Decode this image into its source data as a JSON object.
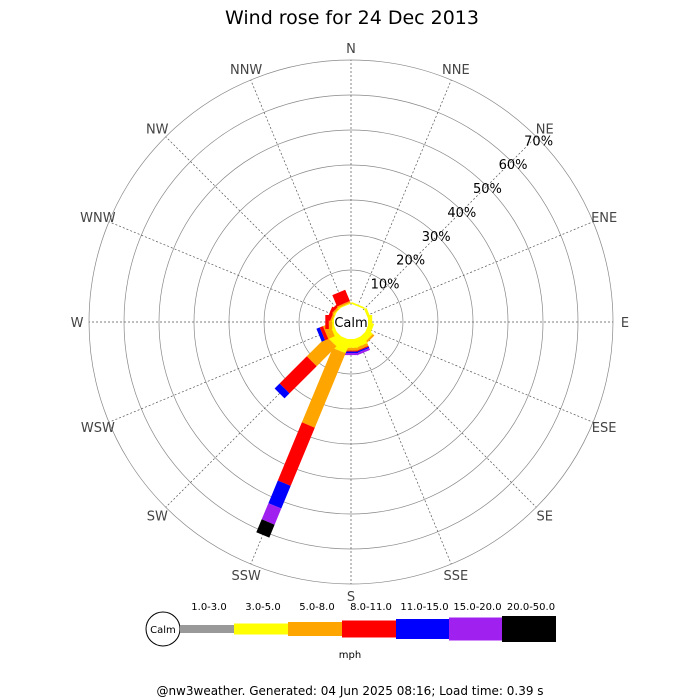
{
  "chart_data": {
    "type": "wind-rose",
    "title": "Wind rose for 24 Dec 2013",
    "directions": [
      "N",
      "NNE",
      "NE",
      "ENE",
      "E",
      "ESE",
      "SE",
      "SSE",
      "S",
      "SSW",
      "SW",
      "WSW",
      "W",
      "WNW",
      "NW",
      "NNW"
    ],
    "radial_ticks": [
      "10%",
      "20%",
      "30%",
      "40%",
      "50%",
      "60%",
      "70%"
    ],
    "radial_max": 70,
    "calm_label": "Calm",
    "unit": "mph",
    "bins": [
      {
        "label": "1.0-3.0",
        "color": "#999999"
      },
      {
        "label": "3.0-5.0",
        "color": "#ffff00"
      },
      {
        "label": "5.0-8.0",
        "color": "#ffa500"
      },
      {
        "label": "8.0-11.0",
        "color": "#ff0000"
      },
      {
        "label": "11.0-15.0",
        "color": "#0000ff"
      },
      {
        "label": "15.0-20.0",
        "color": "#a020f0"
      },
      {
        "label": "20.0-50.0",
        "color": "#000000"
      }
    ],
    "series": [
      {
        "direction": "NNE",
        "values": [
          0,
          0.5,
          0,
          0,
          0,
          0,
          0
        ]
      },
      {
        "direction": "ENE",
        "values": [
          0,
          0.8,
          0,
          0,
          0,
          0,
          0
        ]
      },
      {
        "direction": "E",
        "values": [
          0,
          1.2,
          0,
          0,
          0,
          0,
          0
        ]
      },
      {
        "direction": "ESE",
        "values": [
          0,
          1.5,
          0,
          0,
          0,
          0,
          0
        ]
      },
      {
        "direction": "SE",
        "values": [
          0,
          2.0,
          0.6,
          0,
          0,
          0,
          0
        ]
      },
      {
        "direction": "SSE",
        "values": [
          0,
          2.5,
          0.8,
          0.3,
          0.4,
          0.6,
          0
        ]
      },
      {
        "direction": "S",
        "values": [
          0,
          2.5,
          0.8,
          0.3,
          0.4,
          0.6,
          0
        ]
      },
      {
        "direction": "SSW",
        "values": [
          0,
          4,
          23,
          18,
          7,
          5,
          4
        ]
      },
      {
        "direction": "SW",
        "values": [
          0,
          3,
          8,
          11,
          2,
          0,
          0
        ]
      },
      {
        "direction": "WSW",
        "values": [
          0,
          1,
          2,
          1,
          1,
          0,
          0
        ]
      },
      {
        "direction": "W",
        "values": [
          0,
          0.5,
          1,
          1,
          0,
          0,
          0
        ]
      },
      {
        "direction": "WNW",
        "values": [
          0,
          0.3,
          0.5,
          1,
          0,
          0,
          0
        ]
      },
      {
        "direction": "NW",
        "values": [
          0,
          0.3,
          0.5,
          0.8,
          0,
          0,
          0
        ]
      },
      {
        "direction": "NNW",
        "values": [
          0,
          0.3,
          0.5,
          3.5,
          0,
          0,
          0
        ]
      }
    ]
  },
  "footer": "@nw3weather. Generated: 04 Jun 2025 08:16; Load time: 0.39 s"
}
